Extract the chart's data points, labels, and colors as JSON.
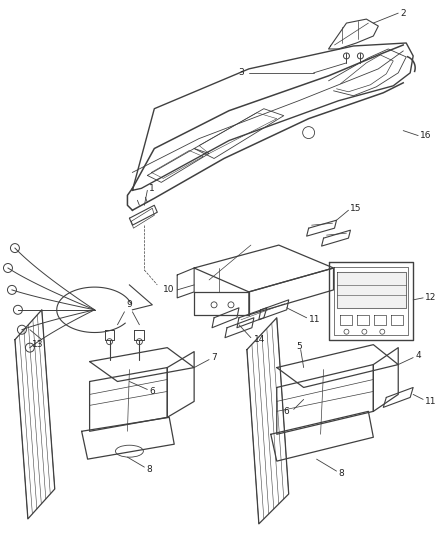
{
  "bg": "#ffffff",
  "lc": "#404040",
  "lc2": "#555555",
  "fig_w": 4.38,
  "fig_h": 5.33,
  "dpi": 100,
  "label_fs": 6.5,
  "leader_lw": 0.6
}
